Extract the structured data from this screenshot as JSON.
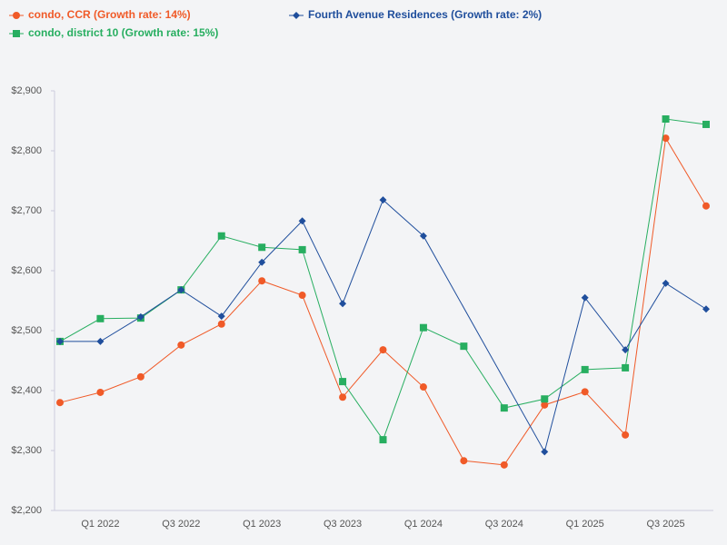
{
  "chart_data": {
    "type": "line",
    "categories": [
      null,
      "Q1 2022",
      null,
      "Q3 2022",
      null,
      "Q1 2023",
      null,
      "Q3 2023",
      null,
      "Q1 2024",
      null,
      "Q3 2024",
      null,
      "Q1 2025",
      null,
      "Q3 2025",
      null
    ],
    "series": [
      {
        "name": "condo, CCR (Growth rate: 14%)",
        "color": "#f05a28",
        "marker": "circle",
        "values": [
          2380,
          2397,
          2423,
          2476,
          2511,
          2583,
          2559,
          2389,
          2468,
          2406,
          2283,
          2276,
          2376,
          2398,
          2326,
          2821,
          2708
        ]
      },
      {
        "name": "condo, district 10 (Growth rate: 15%)",
        "color": "#27ae60",
        "marker": "square",
        "values": [
          2482,
          2520,
          2521,
          2568,
          2658,
          2639,
          2635,
          2415,
          2318,
          2505,
          2474,
          2371,
          2386,
          2435,
          2438,
          2853,
          2844
        ]
      },
      {
        "name": "Fourth Avenue Residences (Growth rate: 2%)",
        "color": "#1f4e9c",
        "marker": "diamond",
        "values": [
          2482,
          2482,
          2523,
          2568,
          2524,
          2614,
          2683,
          2545,
          2718,
          2658,
          null,
          null,
          2298,
          2555,
          2468,
          2579,
          2536
        ]
      }
    ],
    "ylim": [
      2200,
      2900
    ],
    "yticks": [
      {
        "value": 2200,
        "label": "$2,200"
      },
      {
        "value": 2300,
        "label": "$2,300"
      },
      {
        "value": 2400,
        "label": "$2,400"
      },
      {
        "value": 2500,
        "label": "$2,500"
      },
      {
        "value": 2600,
        "label": "$2,600"
      },
      {
        "value": 2700,
        "label": "$2,700"
      },
      {
        "value": 2800,
        "label": "$2,800"
      },
      {
        "value": 2900,
        "label": "$2,900"
      }
    ],
    "grid": false,
    "connect_gaps": true,
    "legend": "top"
  }
}
